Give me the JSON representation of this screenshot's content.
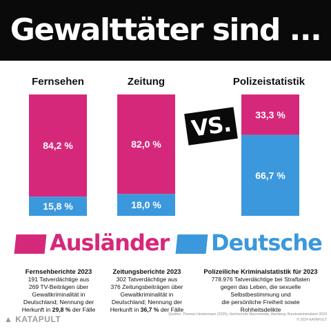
{
  "title": "Gewalttäter sind ...",
  "vs_label": "VS.",
  "colors": {
    "auslaender": "#d6287a",
    "deutsche": "#3b98dc",
    "title_bg": "#0a0a0a"
  },
  "chart_data": {
    "type": "bar",
    "stacked": true,
    "percent": true,
    "categories": [
      "Fernsehen",
      "Zeitung",
      "Polizeistatistik"
    ],
    "series": [
      {
        "name": "Ausländer",
        "values": [
          84.2,
          82.0,
          33.3
        ],
        "labels": [
          "84,2 %",
          "82,0 %",
          "33,3 %"
        ]
      },
      {
        "name": "Deutsche",
        "values": [
          15.8,
          18.0,
          66.7
        ],
        "labels": [
          "15,8 %",
          "18,0 %",
          "66,7 %"
        ]
      }
    ],
    "ylim": [
      0,
      100
    ],
    "legend": "bottom"
  },
  "legend": {
    "auslaender": "Ausländer",
    "deutsche": "Deutsche"
  },
  "notes": [
    {
      "title": "Fernsehberichte 2023",
      "lines": [
        "191 Tatverdächtige aus",
        "269 TV-Beiträgen über",
        "Gewaltkriminalität in",
        "Deutschland; Nennung der"
      ],
      "last_pre": "Herkunft in ",
      "last_bold": "29,8 %",
      "last_post": " der Fälle"
    },
    {
      "title": "Zeitungsberichte 2023",
      "lines": [
        "302 Tatverdächtige aus",
        "376 Zeitungsbeiträgen über",
        "Gewaltkriminalität in",
        "Deutschland; Nennung der"
      ],
      "last_pre": "Herkunft in ",
      "last_bold": "36,7 %",
      "last_post": " der Fälle"
    },
    {
      "title": "Polizeiliche Kriminalstatistik für 2023",
      "lines": [
        "778.976 Tatverdächtige bei Straftaten",
        "gegen das Leben, die sexuelle",
        "Selbstbestimmung und",
        "die persönliche Freiheit sowie",
        "Rohheitsdelikte"
      ]
    }
  ],
  "footer": {
    "logo": "KATAPULT",
    "source": "Quellen: Thomas Hestermann (2025), Hochschule Macromedia, Hamburg; Bundeskriminalamt 2024",
    "copyright": "© 2024 KATAPULT"
  }
}
